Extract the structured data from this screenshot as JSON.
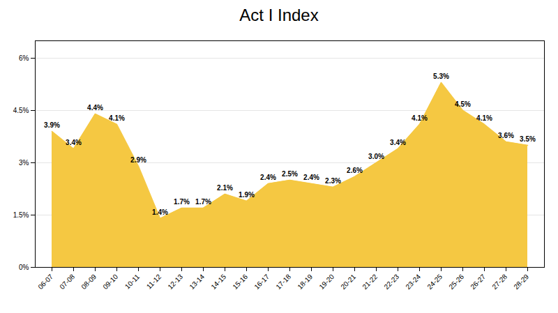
{
  "chart_data": {
    "type": "area",
    "title": "Act I Index",
    "categories": [
      "06-07",
      "07-08",
      "08-09",
      "09-10",
      "10-11",
      "11-12",
      "12-13",
      "13-14",
      "14-15",
      "15-16",
      "16-17",
      "17-18",
      "18-19",
      "19-20",
      "20-21",
      "21-22",
      "22-23",
      "23-24",
      "24-25",
      "25-26",
      "26-27",
      "27-28",
      "28-29"
    ],
    "values": [
      3.9,
      3.4,
      4.4,
      4.1,
      2.9,
      1.4,
      1.7,
      1.7,
      2.1,
      1.9,
      2.4,
      2.5,
      2.4,
      2.3,
      2.6,
      3.0,
      3.4,
      4.1,
      5.3,
      4.5,
      4.1,
      3.6,
      3.5
    ],
    "value_labels": [
      "3.9%",
      "3.4%",
      "4.4%",
      "4.1%",
      "2.9%",
      "1.4%",
      "1.7%",
      "1.7%",
      "2.1%",
      "1.9%",
      "2.4%",
      "2.5%",
      "2.4%",
      "2.3%",
      "2.6%",
      "3.0%",
      "3.4%",
      "4.1%",
      "5.3%",
      "4.5%",
      "4.1%",
      "3.6%",
      "3.5%"
    ],
    "color": "#f5c842",
    "ylim": [
      0,
      6.5
    ],
    "yticks": [
      {
        "value": 0,
        "label": "0%"
      },
      {
        "value": 1.5,
        "label": "1.5%"
      },
      {
        "value": 3.0,
        "label": "3%"
      },
      {
        "value": 4.5,
        "label": "4.5%"
      },
      {
        "value": 6.0,
        "label": "6%"
      }
    ],
    "grid": true,
    "data_labels": true
  }
}
